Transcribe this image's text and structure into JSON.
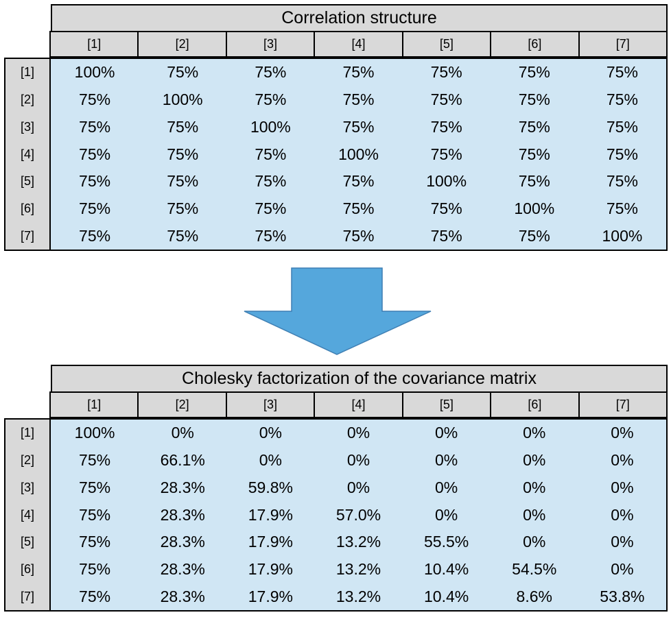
{
  "correlation": {
    "title": "Correlation structure",
    "col_headers": [
      "[1]",
      "[2]",
      "[3]",
      "[4]",
      "[5]",
      "[6]",
      "[7]"
    ],
    "row_headers": [
      "[1]",
      "[2]",
      "[3]",
      "[4]",
      "[5]",
      "[6]",
      "[7]"
    ],
    "rows": [
      [
        "100%",
        "75%",
        "75%",
        "75%",
        "75%",
        "75%",
        "75%"
      ],
      [
        "75%",
        "100%",
        "75%",
        "75%",
        "75%",
        "75%",
        "75%"
      ],
      [
        "75%",
        "75%",
        "100%",
        "75%",
        "75%",
        "75%",
        "75%"
      ],
      [
        "75%",
        "75%",
        "75%",
        "100%",
        "75%",
        "75%",
        "75%"
      ],
      [
        "75%",
        "75%",
        "75%",
        "75%",
        "100%",
        "75%",
        "75%"
      ],
      [
        "75%",
        "75%",
        "75%",
        "75%",
        "75%",
        "100%",
        "75%"
      ],
      [
        "75%",
        "75%",
        "75%",
        "75%",
        "75%",
        "75%",
        "100%"
      ]
    ]
  },
  "cholesky": {
    "title": "Cholesky factorization of the covariance matrix",
    "col_headers": [
      "[1]",
      "[2]",
      "[3]",
      "[4]",
      "[5]",
      "[6]",
      "[7]"
    ],
    "row_headers": [
      "[1]",
      "[2]",
      "[3]",
      "[4]",
      "[5]",
      "[6]",
      "[7]"
    ],
    "rows": [
      [
        "100%",
        "0%",
        "0%",
        "0%",
        "0%",
        "0%",
        "0%"
      ],
      [
        "75%",
        "66.1%",
        "0%",
        "0%",
        "0%",
        "0%",
        "0%"
      ],
      [
        "75%",
        "28.3%",
        "59.8%",
        "0%",
        "0%",
        "0%",
        "0%"
      ],
      [
        "75%",
        "28.3%",
        "17.9%",
        "57.0%",
        "0%",
        "0%",
        "0%"
      ],
      [
        "75%",
        "28.3%",
        "17.9%",
        "13.2%",
        "55.5%",
        "0%",
        "0%"
      ],
      [
        "75%",
        "28.3%",
        "17.9%",
        "13.2%",
        "10.4%",
        "54.5%",
        "0%"
      ],
      [
        "75%",
        "28.3%",
        "17.9%",
        "13.2%",
        "10.4%",
        "8.6%",
        "53.8%"
      ]
    ]
  },
  "colors": {
    "header_fill": "#d9d9d9",
    "cell_fill": "#d0e6f4",
    "arrow_fill": "#55a7dc",
    "arrow_stroke": "#3f7fb3"
  },
  "arrow_icon": "down-arrow-icon"
}
